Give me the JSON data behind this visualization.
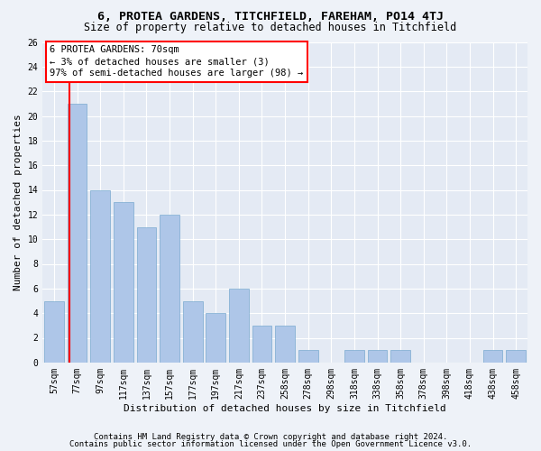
{
  "title": "6, PROTEA GARDENS, TITCHFIELD, FAREHAM, PO14 4TJ",
  "subtitle": "Size of property relative to detached houses in Titchfield",
  "xlabel": "Distribution of detached houses by size in Titchfield",
  "ylabel": "Number of detached properties",
  "categories": [
    "57sqm",
    "77sqm",
    "97sqm",
    "117sqm",
    "137sqm",
    "157sqm",
    "177sqm",
    "197sqm",
    "217sqm",
    "237sqm",
    "258sqm",
    "278sqm",
    "298sqm",
    "318sqm",
    "338sqm",
    "358sqm",
    "378sqm",
    "398sqm",
    "418sqm",
    "438sqm",
    "458sqm"
  ],
  "values": [
    5,
    21,
    14,
    13,
    11,
    12,
    5,
    4,
    6,
    3,
    3,
    1,
    0,
    1,
    1,
    1,
    0,
    0,
    0,
    1,
    1
  ],
  "bar_color": "#aec6e8",
  "bar_edge_color": "#7aaad0",
  "bar_width": 0.85,
  "ylim": [
    0,
    26
  ],
  "yticks": [
    0,
    2,
    4,
    6,
    8,
    10,
    12,
    14,
    16,
    18,
    20,
    22,
    24,
    26
  ],
  "annotation_box_text": "6 PROTEA GARDENS: 70sqm\n← 3% of detached houses are smaller (3)\n97% of semi-detached houses are larger (98) →",
  "footer_line1": "Contains HM Land Registry data © Crown copyright and database right 2024.",
  "footer_line2": "Contains public sector information licensed under the Open Government Licence v3.0.",
  "bg_color": "#eef2f8",
  "plot_bg_color": "#e4eaf4",
  "grid_color": "#ffffff",
  "title_fontsize": 9.5,
  "subtitle_fontsize": 8.5,
  "axis_label_fontsize": 8,
  "tick_fontsize": 7,
  "annotation_fontsize": 7.5,
  "footer_fontsize": 6.5
}
